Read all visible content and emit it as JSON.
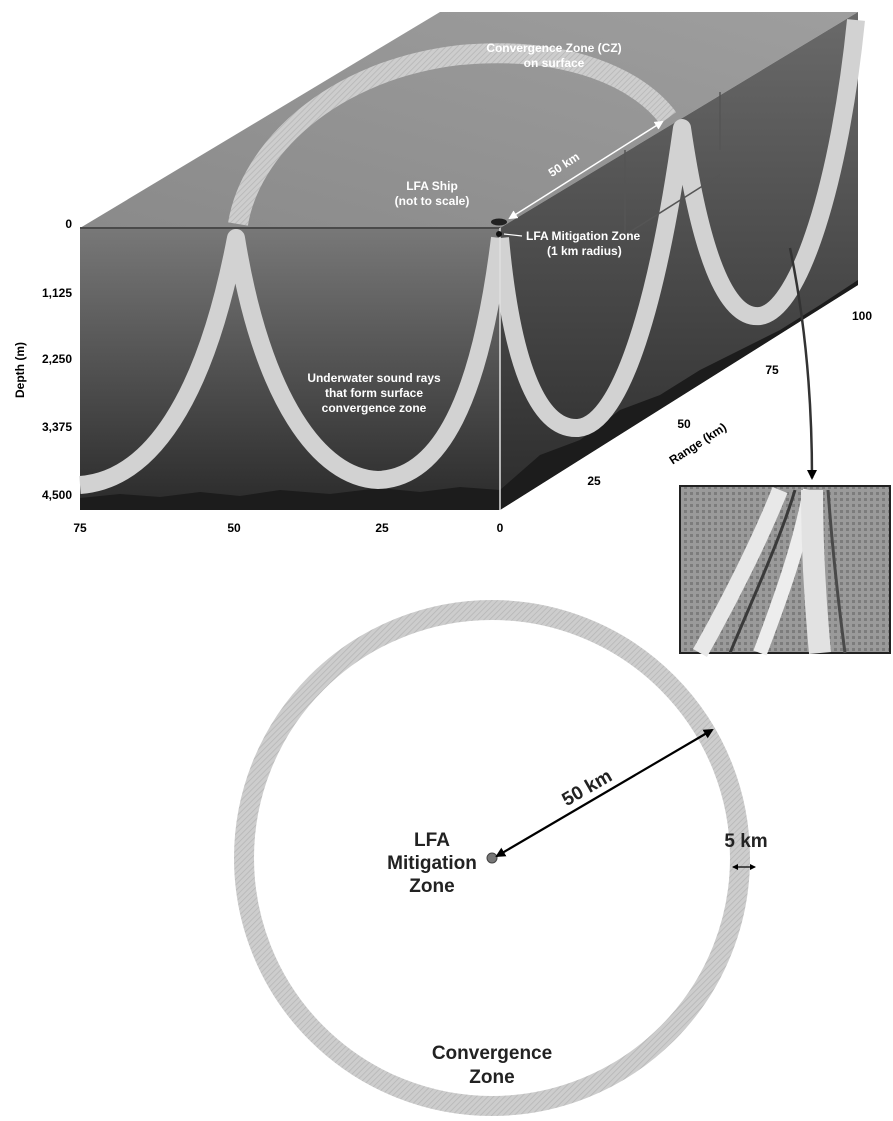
{
  "block": {
    "depth_axis_label": "Depth (m)",
    "depth_ticks": [
      "0",
      "1,125",
      "2,250",
      "3,375",
      "4,500"
    ],
    "range_bottom_ticks": [
      "75",
      "50",
      "25",
      "0"
    ],
    "range_axis_label": "Range (km)",
    "range_side_ticks": [
      "25",
      "50",
      "75",
      "100"
    ],
    "cz_surface_label": [
      "Convergence Zone (CZ)",
      "on surface"
    ],
    "distance_label": "50 km",
    "ship_label": [
      "LFA Ship",
      "(not to scale)"
    ],
    "mitigation_label": [
      "LFA Mitigation Zone",
      "(1 km radius)"
    ],
    "rays_label": [
      "Underwater sound rays",
      "that form surface",
      "convergence zone"
    ]
  },
  "plan": {
    "radius_label": "50 km",
    "center_label": [
      "LFA",
      "Mitigation",
      "Zone"
    ],
    "width_label": "5 km",
    "ring_label": [
      "Convergence",
      "Zone"
    ]
  },
  "colors": {
    "ring": "#c9c9c9",
    "ray": "#d4d4d4",
    "water_top": "#6e6e6e",
    "water_bottom": "#262626",
    "surface": "#8e8e8e"
  }
}
